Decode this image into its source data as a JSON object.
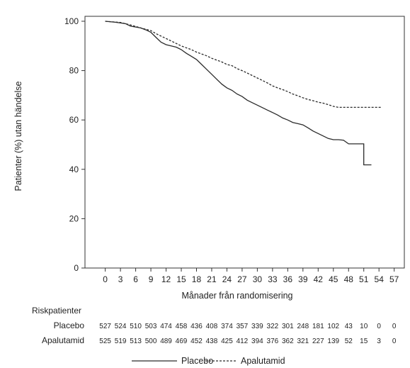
{
  "chart_data": {
    "type": "line",
    "xlabel": "Månader från randomisering",
    "ylabel": "Patienter (%) utan händelse",
    "xlim": [
      -4,
      59
    ],
    "ylim": [
      0,
      102
    ],
    "x_ticks": [
      0,
      3,
      6,
      9,
      12,
      15,
      18,
      21,
      24,
      27,
      30,
      33,
      36,
      39,
      42,
      45,
      48,
      51,
      54,
      57
    ],
    "y_ticks": [
      0,
      20,
      40,
      60,
      80,
      100
    ],
    "grid": false,
    "legend_position": "bottom-center",
    "series": [
      {
        "name": "Placebo",
        "style": "solid",
        "color": "#2b2b2b",
        "points": [
          [
            0,
            100
          ],
          [
            2,
            99.6
          ],
          [
            4,
            99
          ],
          [
            5,
            98
          ],
          [
            7,
            97.3
          ],
          [
            8,
            96.5
          ],
          [
            9,
            95.5
          ],
          [
            10,
            93.5
          ],
          [
            11,
            91.5
          ],
          [
            12,
            90.5
          ],
          [
            14,
            89.5
          ],
          [
            15,
            88.5
          ],
          [
            16,
            87
          ],
          [
            17,
            85.8
          ],
          [
            18,
            84.5
          ],
          [
            19,
            82.5
          ],
          [
            20,
            80.5
          ],
          [
            21,
            78.5
          ],
          [
            22,
            76.5
          ],
          [
            23,
            74.5
          ],
          [
            24,
            73
          ],
          [
            25,
            72
          ],
          [
            26,
            70.5
          ],
          [
            27,
            69.5
          ],
          [
            28,
            68
          ],
          [
            29,
            67
          ],
          [
            30,
            66
          ],
          [
            31,
            65
          ],
          [
            32,
            64
          ],
          [
            33,
            63
          ],
          [
            34,
            62
          ],
          [
            35,
            60.8
          ],
          [
            36,
            60
          ],
          [
            37,
            59
          ],
          [
            38,
            58.5
          ],
          [
            39,
            58
          ],
          [
            40,
            56.8
          ],
          [
            41,
            55.5
          ],
          [
            42,
            54.5
          ],
          [
            43,
            53.5
          ],
          [
            44,
            52.5
          ],
          [
            45,
            52
          ],
          [
            46,
            52
          ],
          [
            47,
            51.8
          ],
          [
            48,
            50.3
          ],
          [
            51,
            50.3
          ],
          [
            51,
            41.8
          ],
          [
            52.5,
            41.8
          ]
        ]
      },
      {
        "name": "Apalutamid",
        "style": "dashed",
        "color": "#2b2b2b",
        "points": [
          [
            0,
            100
          ],
          [
            3,
            99.5
          ],
          [
            5,
            98.5
          ],
          [
            7,
            97.3
          ],
          [
            9,
            96.2
          ],
          [
            10,
            95
          ],
          [
            12,
            93
          ],
          [
            14,
            91
          ],
          [
            15,
            90
          ],
          [
            17,
            88.5
          ],
          [
            18,
            87.5
          ],
          [
            20,
            86
          ],
          [
            21,
            85
          ],
          [
            23,
            83.5
          ],
          [
            24,
            82.5
          ],
          [
            25,
            82
          ],
          [
            26,
            80.8
          ],
          [
            27,
            80
          ],
          [
            28,
            79
          ],
          [
            29,
            78
          ],
          [
            30,
            77
          ],
          [
            31,
            76
          ],
          [
            32,
            75
          ],
          [
            33,
            73.8
          ],
          [
            34,
            73
          ],
          [
            35,
            72.3
          ],
          [
            36,
            71.5
          ],
          [
            37,
            70.5
          ],
          [
            38,
            69.8
          ],
          [
            39,
            69
          ],
          [
            40,
            68.3
          ],
          [
            41,
            67.8
          ],
          [
            42,
            67.2
          ],
          [
            43,
            66.8
          ],
          [
            44,
            66.2
          ],
          [
            45,
            65.5
          ],
          [
            46,
            65.1
          ],
          [
            50,
            65.1
          ],
          [
            54.5,
            65.1
          ]
        ]
      }
    ],
    "risk_table": {
      "title": "Riskpatienter",
      "rows": [
        {
          "label": "Placebo",
          "values": [
            "527",
            "524",
            "510",
            "503",
            "474",
            "458",
            "436",
            "408",
            "374",
            "357",
            "339",
            "322",
            "301",
            "248",
            "181",
            "102",
            "43",
            "10",
            "0",
            "0"
          ]
        },
        {
          "label": "Apalutamid",
          "values": [
            "525",
            "519",
            "513",
            "500",
            "489",
            "469",
            "452",
            "438",
            "425",
            "412",
            "394",
            "376",
            "362",
            "321",
            "227",
            "139",
            "52",
            "15",
            "3",
            "0"
          ]
        }
      ]
    }
  }
}
